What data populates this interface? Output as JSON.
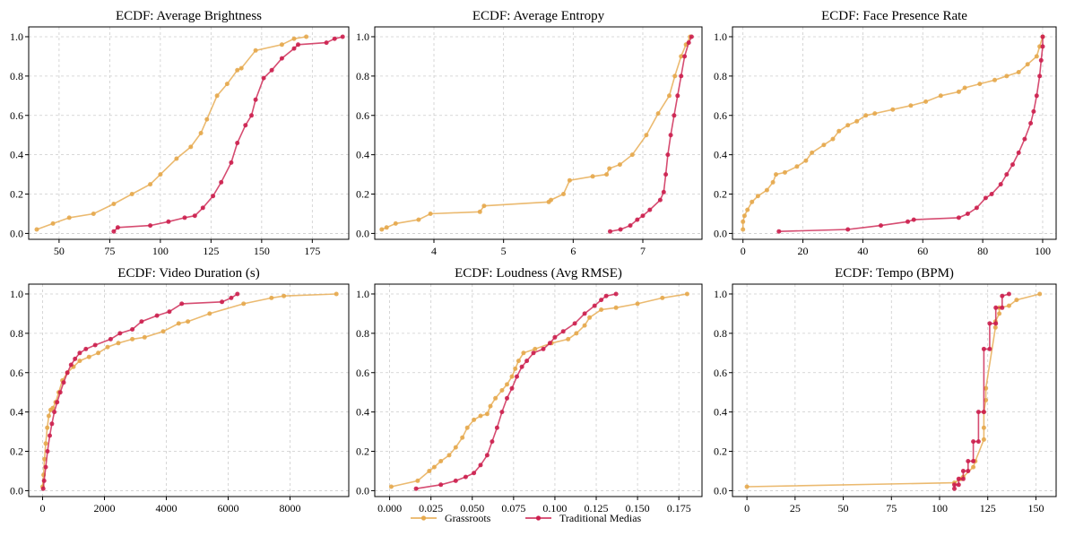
{
  "colors": {
    "grassroots": "#e6a94c",
    "traditional": "#cc1f4e"
  },
  "legend": {
    "grassroots_label": "Grassroots",
    "traditional_label": "Traditional Medias"
  },
  "chart_data": [
    {
      "type": "line",
      "title": "ECDF: Average Brightness",
      "xlim": [
        35,
        193
      ],
      "ylim": [
        -0.03,
        1.05
      ],
      "xticks": [
        50,
        75,
        100,
        125,
        150,
        175
      ],
      "xtick_labels": [
        "50",
        "75",
        "100",
        "125",
        "150",
        "175"
      ],
      "yticks": [
        0.0,
        0.2,
        0.4,
        0.6,
        0.8,
        1.0
      ],
      "ytick_labels": [
        "0.0",
        "0.2",
        "0.4",
        "0.6",
        "0.8",
        "1.0"
      ],
      "series": [
        {
          "name": "Grassroots",
          "x": [
            39,
            47,
            55,
            67,
            77,
            86,
            95,
            100,
            108,
            115,
            120,
            123,
            128,
            133,
            138,
            140,
            147,
            160,
            166,
            172
          ],
          "y": [
            0.02,
            0.05,
            0.08,
            0.1,
            0.15,
            0.2,
            0.25,
            0.3,
            0.38,
            0.44,
            0.51,
            0.58,
            0.7,
            0.76,
            0.83,
            0.84,
            0.93,
            0.96,
            0.99,
            1.0
          ]
        },
        {
          "name": "Traditional Medias",
          "x": [
            77,
            79,
            95,
            104,
            112,
            117,
            121,
            126,
            130,
            135,
            138,
            142,
            145,
            147,
            151,
            155,
            160,
            166,
            168,
            182,
            186,
            190
          ],
          "y": [
            0.01,
            0.03,
            0.04,
            0.06,
            0.08,
            0.09,
            0.13,
            0.19,
            0.26,
            0.36,
            0.46,
            0.55,
            0.6,
            0.68,
            0.79,
            0.83,
            0.89,
            0.94,
            0.96,
            0.97,
            0.99,
            1.0
          ]
        }
      ]
    },
    {
      "type": "line",
      "title": "ECDF: Average Entropy",
      "xlim": [
        3.15,
        7.85
      ],
      "ylim": [
        -0.03,
        1.05
      ],
      "xticks": [
        4,
        5,
        6,
        7
      ],
      "xtick_labels": [
        "4",
        "5",
        "6",
        "7"
      ],
      "yticks": [
        0.0,
        0.2,
        0.4,
        0.6,
        0.8,
        1.0
      ],
      "ytick_labels": [
        "0.0",
        "0.2",
        "0.4",
        "0.6",
        "0.8",
        "1.0"
      ],
      "series": [
        {
          "name": "Grassroots",
          "x": [
            3.25,
            3.32,
            3.45,
            3.78,
            3.95,
            4.66,
            4.72,
            5.65,
            5.68,
            5.86,
            5.95,
            6.28,
            6.48,
            6.52,
            6.67,
            6.85,
            7.05,
            7.22,
            7.38,
            7.46,
            7.55,
            7.62,
            7.68
          ],
          "y": [
            0.02,
            0.03,
            0.05,
            0.07,
            0.1,
            0.11,
            0.14,
            0.16,
            0.17,
            0.2,
            0.27,
            0.29,
            0.3,
            0.33,
            0.35,
            0.4,
            0.5,
            0.61,
            0.7,
            0.8,
            0.9,
            0.96,
            1.0
          ]
        },
        {
          "name": "Traditional Medias",
          "x": [
            6.53,
            6.68,
            6.82,
            6.92,
            7.0,
            7.1,
            7.25,
            7.3,
            7.33,
            7.36,
            7.4,
            7.45,
            7.5,
            7.55,
            7.6,
            7.66,
            7.7
          ],
          "y": [
            0.01,
            0.02,
            0.04,
            0.07,
            0.09,
            0.12,
            0.17,
            0.21,
            0.3,
            0.4,
            0.5,
            0.6,
            0.7,
            0.8,
            0.9,
            0.97,
            1.0
          ]
        }
      ]
    },
    {
      "type": "line",
      "title": "ECDF: Face Presence Rate",
      "xlim": [
        -3.5,
        104.5
      ],
      "ylim": [
        -0.03,
        1.05
      ],
      "xticks": [
        0,
        20,
        40,
        60,
        80,
        100
      ],
      "xtick_labels": [
        "0",
        "20",
        "40",
        "60",
        "80",
        "100"
      ],
      "yticks": [
        0.0,
        0.2,
        0.4,
        0.6,
        0.8,
        1.0
      ],
      "ytick_labels": [
        "0.0",
        "0.2",
        "0.4",
        "0.6",
        "0.8",
        "1.0"
      ],
      "series": [
        {
          "name": "Grassroots",
          "x": [
            0,
            0,
            0.5,
            1.5,
            3,
            5,
            8,
            10,
            11,
            14,
            18,
            21,
            23,
            27,
            30,
            32,
            35,
            38,
            41,
            44,
            50,
            56,
            61,
            66,
            72,
            74,
            79,
            84,
            88,
            92,
            95,
            98,
            99,
            100
          ],
          "y": [
            0.02,
            0.06,
            0.09,
            0.12,
            0.16,
            0.19,
            0.22,
            0.26,
            0.3,
            0.31,
            0.34,
            0.37,
            0.41,
            0.45,
            0.48,
            0.52,
            0.55,
            0.57,
            0.6,
            0.61,
            0.63,
            0.65,
            0.67,
            0.7,
            0.72,
            0.74,
            0.76,
            0.78,
            0.8,
            0.82,
            0.86,
            0.9,
            0.95,
            1.0
          ]
        },
        {
          "name": "Traditional Medias",
          "x": [
            12,
            35,
            46,
            55,
            57,
            72,
            75,
            78,
            81,
            83,
            86,
            88,
            90,
            92,
            94,
            96,
            97,
            98,
            99,
            99.5,
            100,
            100
          ],
          "y": [
            0.01,
            0.02,
            0.04,
            0.06,
            0.07,
            0.08,
            0.1,
            0.13,
            0.18,
            0.2,
            0.25,
            0.3,
            0.35,
            0.41,
            0.48,
            0.56,
            0.62,
            0.7,
            0.8,
            0.88,
            0.95,
            1.0
          ]
        }
      ]
    },
    {
      "type": "line",
      "title": "ECDF: Video Duration (s)",
      "xlim": [
        -450,
        9900
      ],
      "ylim": [
        -0.03,
        1.05
      ],
      "xticks": [
        0,
        2000,
        4000,
        6000,
        8000
      ],
      "xtick_labels": [
        "0",
        "2000",
        "4000",
        "6000",
        "8000"
      ],
      "yticks": [
        0.0,
        0.2,
        0.4,
        0.6,
        0.8,
        1.0
      ],
      "ytick_labels": [
        "0.0",
        "0.2",
        "0.4",
        "0.6",
        "0.8",
        "1.0"
      ],
      "series": [
        {
          "name": "Grassroots",
          "x": [
            0,
            30,
            60,
            100,
            150,
            200,
            260,
            330,
            420,
            520,
            640,
            800,
            1000,
            1200,
            1500,
            1800,
            2100,
            2450,
            2900,
            3300,
            3900,
            4400,
            4700,
            5400,
            6500,
            7400,
            7800,
            9500
          ],
          "y": [
            0.02,
            0.08,
            0.16,
            0.24,
            0.32,
            0.38,
            0.41,
            0.42,
            0.45,
            0.5,
            0.56,
            0.6,
            0.63,
            0.66,
            0.68,
            0.7,
            0.73,
            0.75,
            0.77,
            0.78,
            0.81,
            0.85,
            0.86,
            0.9,
            0.95,
            0.98,
            0.99,
            1.0
          ]
        },
        {
          "name": "Traditional Medias",
          "x": [
            20,
            50,
            100,
            160,
            230,
            300,
            380,
            470,
            570,
            680,
            800,
            920,
            1050,
            1200,
            1400,
            1700,
            2200,
            2500,
            2900,
            3200,
            3700,
            4100,
            4500,
            5800,
            6100,
            6300
          ],
          "y": [
            0.01,
            0.05,
            0.12,
            0.2,
            0.28,
            0.34,
            0.4,
            0.45,
            0.5,
            0.55,
            0.6,
            0.64,
            0.67,
            0.7,
            0.72,
            0.74,
            0.77,
            0.8,
            0.82,
            0.86,
            0.89,
            0.91,
            0.95,
            0.96,
            0.98,
            1.0
          ]
        }
      ]
    },
    {
      "type": "line",
      "title": "ECDF: Loudness (Avg RMSE)",
      "xlim": [
        -0.009,
        0.189
      ],
      "ylim": [
        -0.03,
        1.05
      ],
      "xticks": [
        0.0,
        0.025,
        0.05,
        0.075,
        0.1,
        0.125,
        0.15,
        0.175
      ],
      "xtick_labels": [
        "0.000",
        "0.025",
        "0.050",
        "0.075",
        "0.100",
        "0.125",
        "0.150",
        "0.175"
      ],
      "yticks": [
        0.0,
        0.2,
        0.4,
        0.6,
        0.8,
        1.0
      ],
      "ytick_labels": [
        "0.0",
        "0.2",
        "0.4",
        "0.6",
        "0.8",
        "1.0"
      ],
      "series": [
        {
          "name": "Grassroots",
          "x": [
            0.001,
            0.017,
            0.024,
            0.027,
            0.031,
            0.036,
            0.04,
            0.044,
            0.047,
            0.051,
            0.055,
            0.059,
            0.061,
            0.064,
            0.068,
            0.071,
            0.074,
            0.076,
            0.078,
            0.081,
            0.088,
            0.098,
            0.108,
            0.113,
            0.118,
            0.121,
            0.128,
            0.137,
            0.15,
            0.165,
            0.18
          ],
          "y": [
            0.02,
            0.05,
            0.1,
            0.12,
            0.15,
            0.18,
            0.22,
            0.27,
            0.32,
            0.36,
            0.38,
            0.39,
            0.43,
            0.47,
            0.51,
            0.54,
            0.58,
            0.62,
            0.66,
            0.7,
            0.72,
            0.75,
            0.77,
            0.8,
            0.84,
            0.88,
            0.92,
            0.93,
            0.95,
            0.98,
            1.0
          ]
        },
        {
          "name": "Traditional Medias",
          "x": [
            0.016,
            0.031,
            0.04,
            0.046,
            0.051,
            0.055,
            0.059,
            0.062,
            0.065,
            0.068,
            0.071,
            0.074,
            0.077,
            0.08,
            0.083,
            0.087,
            0.093,
            0.097,
            0.1,
            0.105,
            0.112,
            0.118,
            0.124,
            0.128,
            0.131,
            0.137
          ],
          "y": [
            0.01,
            0.03,
            0.05,
            0.07,
            0.09,
            0.13,
            0.18,
            0.25,
            0.32,
            0.4,
            0.47,
            0.52,
            0.58,
            0.63,
            0.66,
            0.7,
            0.72,
            0.75,
            0.78,
            0.81,
            0.85,
            0.9,
            0.94,
            0.97,
            0.99,
            1.0
          ]
        }
      ]
    },
    {
      "type": "line",
      "title": "ECDF: Tempo (BPM)",
      "xlim": [
        -7.5,
        160.5
      ],
      "ylim": [
        -0.03,
        1.05
      ],
      "xticks": [
        0,
        25,
        50,
        75,
        100,
        125,
        150
      ],
      "xtick_labels": [
        "0",
        "25",
        "50",
        "75",
        "100",
        "125",
        "150"
      ],
      "yticks": [
        0.0,
        0.2,
        0.4,
        0.6,
        0.8,
        1.0
      ],
      "ytick_labels": [
        "0.0",
        "0.2",
        "0.4",
        "0.6",
        "0.8",
        "1.0"
      ],
      "series": [
        {
          "name": "Grassroots",
          "x": [
            0,
            107.7,
            111,
            112.3,
            117.5,
            118.5,
            123,
            123,
            123,
            124,
            124,
            129,
            129,
            131,
            131,
            136,
            140,
            152
          ],
          "y": [
            0.02,
            0.04,
            0.06,
            0.07,
            0.12,
            0.15,
            0.26,
            0.32,
            0.4,
            0.46,
            0.52,
            0.83,
            0.86,
            0.9,
            0.93,
            0.94,
            0.97,
            1.0
          ]
        },
        {
          "name": "Traditional Medias",
          "x": [
            107.7,
            107.7,
            109.9,
            109.9,
            112.3,
            112.3,
            114.8,
            114.8,
            117.5,
            117.5,
            120.2,
            120.2,
            123,
            123,
            126,
            126,
            129.2,
            129.2,
            132.5,
            132.5,
            136
          ],
          "y": [
            0.01,
            0.03,
            0.03,
            0.06,
            0.06,
            0.1,
            0.1,
            0.15,
            0.15,
            0.25,
            0.25,
            0.4,
            0.4,
            0.72,
            0.72,
            0.85,
            0.85,
            0.93,
            0.93,
            0.99,
            1.0
          ]
        }
      ]
    }
  ]
}
